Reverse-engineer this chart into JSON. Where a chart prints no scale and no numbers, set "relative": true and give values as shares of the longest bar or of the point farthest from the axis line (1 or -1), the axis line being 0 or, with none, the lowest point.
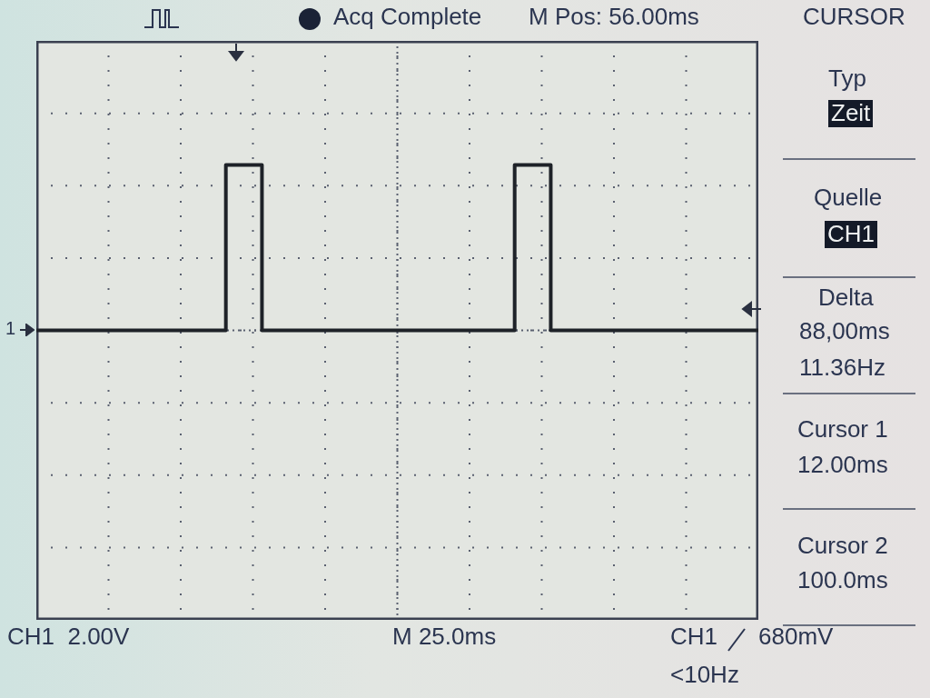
{
  "chart_data": {
    "type": "step",
    "relative": true,
    "categories": [
      null,
      null,
      null,
      null,
      null,
      null,
      null,
      null,
      null,
      null,
      null,
      null,
      null,
      null,
      null,
      null,
      null,
      null,
      null,
      null,
      null,
      null,
      null,
      null,
      null,
      null,
      null,
      null,
      null,
      null,
      null,
      null,
      null,
      null,
      null,
      null,
      null,
      null,
      null,
      null,
      null,
      null,
      null,
      null,
      null,
      null,
      null,
      null,
      null,
      null,
      null,
      null,
      null,
      null,
      null,
      null,
      null,
      null,
      null,
      null,
      null,
      null,
      null,
      null,
      null,
      null,
      null,
      null,
      null,
      null,
      null,
      null,
      null,
      null,
      null,
      null,
      null,
      null,
      null,
      null,
      null
    ],
    "values": [
      0,
      0,
      0,
      0,
      0,
      0,
      0,
      0,
      0,
      0,
      0,
      0,
      0,
      0,
      0,
      0,
      0,
      0,
      0,
      0,
      0,
      0,
      1,
      1,
      1,
      1,
      0,
      0,
      0,
      0,
      0,
      0,
      0,
      0,
      0,
      0,
      0,
      0,
      0,
      0,
      0,
      0,
      0,
      0,
      0,
      0,
      0,
      0,
      0,
      0,
      0,
      0,
      0,
      0,
      1,
      1,
      1,
      1,
      0,
      0,
      0,
      0,
      0,
      0,
      0,
      0,
      0,
      0,
      0,
      0,
      0,
      0,
      0,
      0,
      0,
      0,
      0,
      0,
      0,
      0,
      0
    ],
    "color": "#1e2228",
    "grid": true,
    "legend": false,
    "line_style": "solid",
    "marker": "none",
    "annotations": [
      "Acq Complete",
      "M Pos: 56.00ms",
      "CURSOR",
      "Typ",
      "Zeit",
      "Quelle",
      "CH1",
      "Delta",
      "88,00ms",
      "11.36Hz",
      "Cursor 1",
      "12.00ms",
      "Cursor 2",
      "100.0ms",
      "CH1  2.00V",
      "M 25.0ms",
      "CH1",
      "680mV",
      "<10Hz",
      "1"
    ]
  }
}
